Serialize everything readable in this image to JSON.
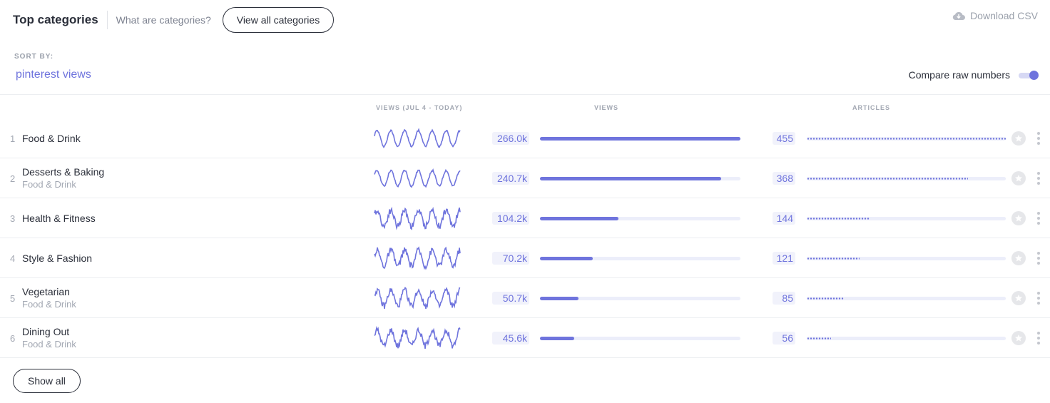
{
  "header": {
    "title": "Top categories",
    "help_link": "What are categories?",
    "view_all_label": "View all categories",
    "download_label": "Download CSV"
  },
  "sort": {
    "label": "SORT BY:",
    "value": "pinterest views"
  },
  "compare": {
    "label": "Compare raw numbers",
    "enabled": true
  },
  "columns": {
    "trend": "VIEWS (JUL 4 - TODAY)",
    "views": "VIEWS",
    "articles": "ARTICLES"
  },
  "colors": {
    "accent": "#6f74dd",
    "track": "#eceefa",
    "muted": "#a3a8b3"
  },
  "max_views": 266.0,
  "max_articles": 455,
  "rows": [
    {
      "rank": "1",
      "name": "Food & Drink",
      "parent": "",
      "views_label": "266.0k",
      "views": 266.0,
      "articles_label": "455",
      "articles": 455,
      "trend_style": "smooth"
    },
    {
      "rank": "2",
      "name": "Desserts & Baking",
      "parent": "Food & Drink",
      "views_label": "240.7k",
      "views": 240.7,
      "articles_label": "368",
      "articles": 368,
      "trend_style": "smooth"
    },
    {
      "rank": "3",
      "name": "Health & Fitness",
      "parent": "",
      "views_label": "104.2k",
      "views": 104.2,
      "articles_label": "144",
      "articles": 144,
      "trend_style": "noisy"
    },
    {
      "rank": "4",
      "name": "Style & Fashion",
      "parent": "",
      "views_label": "70.2k",
      "views": 70.2,
      "articles_label": "121",
      "articles": 121,
      "trend_style": "noisy"
    },
    {
      "rank": "5",
      "name": "Vegetarian",
      "parent": "Food & Drink",
      "views_label": "50.7k",
      "views": 50.7,
      "articles_label": "85",
      "articles": 85,
      "trend_style": "noisy"
    },
    {
      "rank": "6",
      "name": "Dining Out",
      "parent": "Food & Drink",
      "views_label": "45.6k",
      "views": 45.6,
      "articles_label": "56",
      "articles": 56,
      "trend_style": "noisy"
    }
  ],
  "footer": {
    "show_all_label": "Show all"
  },
  "icons": {
    "download": "cloud-download-icon",
    "star": "star-icon",
    "more": "more-vertical-icon"
  }
}
